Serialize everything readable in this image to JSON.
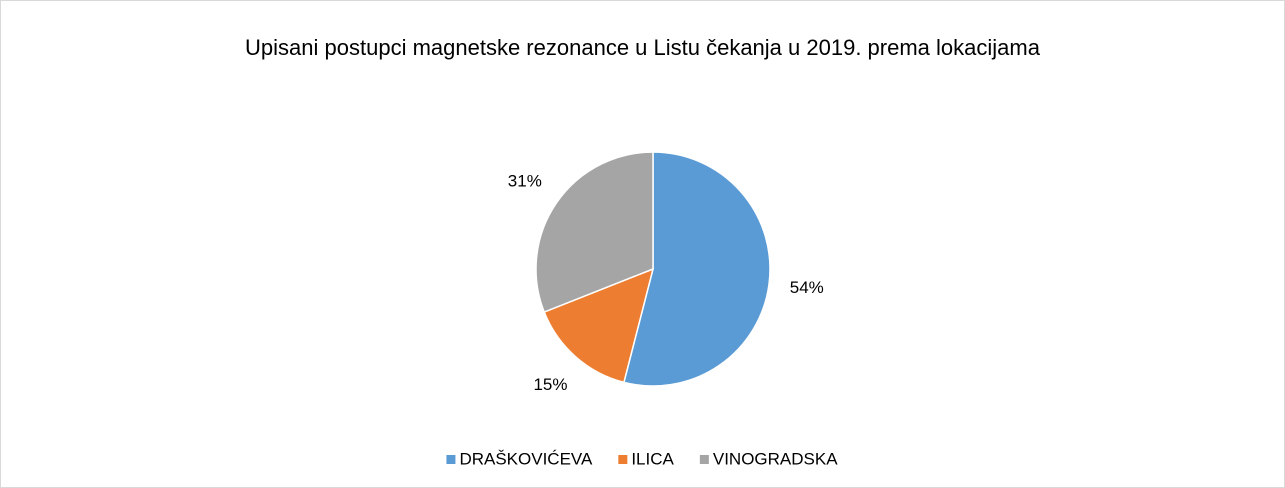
{
  "chart_data": {
    "type": "pie",
    "title": "Upisani postupci magnetske rezonance u Listu čekanja u 2019. prema lokacijama",
    "categories": [
      "DRAŠKOVIĆEVA",
      "ILICA",
      "VINOGRADSKA"
    ],
    "values": [
      54,
      15,
      31
    ],
    "value_labels": [
      "54%",
      "15%",
      "31%"
    ],
    "colors": [
      "#5b9bd5",
      "#ed7d31",
      "#a5a5a5"
    ],
    "legend": "bottom"
  }
}
